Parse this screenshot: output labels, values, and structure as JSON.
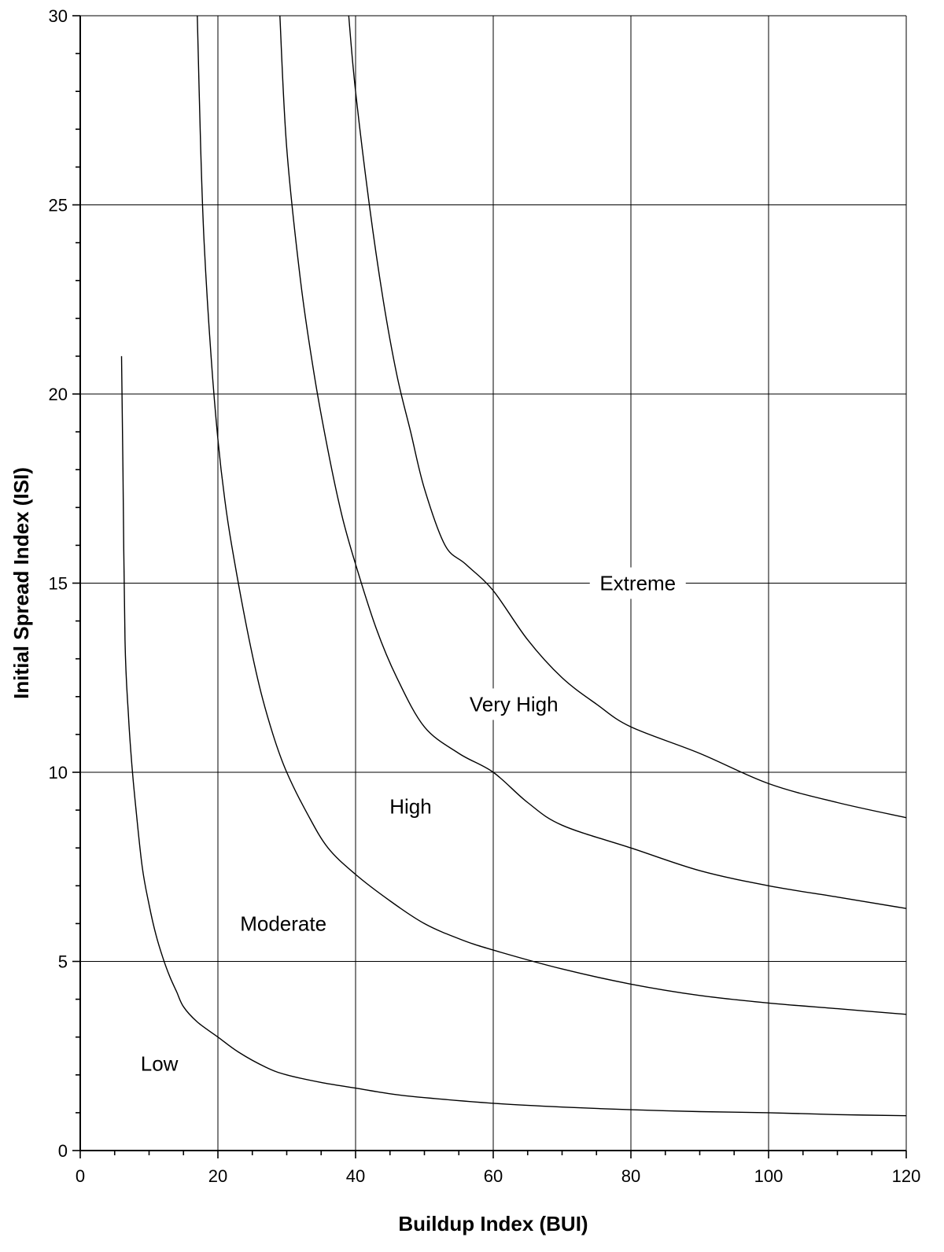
{
  "chart_data": {
    "type": "line",
    "xlabel": "Buildup Index (BUI)",
    "ylabel": "Initial Spread Index (ISI)",
    "xlim": [
      0,
      120
    ],
    "ylim": [
      0,
      30
    ],
    "x_ticks": [
      0,
      20,
      40,
      60,
      80,
      100,
      120
    ],
    "y_ticks": [
      0,
      5,
      10,
      15,
      20,
      25,
      30
    ],
    "x_minor_step": 5,
    "y_minor_step": 1,
    "grid": true,
    "legend": "none",
    "series": [
      {
        "x": [
          6,
          6.2,
          6.5,
          7,
          7.5,
          8,
          9,
          10,
          11,
          12,
          13,
          14,
          15,
          17,
          20,
          23,
          27,
          30,
          35,
          40,
          45,
          50,
          60,
          70,
          80,
          90,
          100,
          110,
          120
        ],
        "y": [
          21,
          18,
          13.5,
          11.5,
          10.2,
          9.2,
          7.5,
          6.5,
          5.7,
          5.1,
          4.6,
          4.2,
          3.8,
          3.4,
          3.0,
          2.6,
          2.2,
          2.0,
          1.8,
          1.65,
          1.5,
          1.4,
          1.25,
          1.15,
          1.08,
          1.03,
          1.0,
          0.95,
          0.92
        ]
      },
      {
        "x": [
          17,
          17.5,
          18,
          19,
          20,
          21,
          22,
          24,
          26,
          28,
          30,
          33,
          36,
          40,
          45,
          50,
          55,
          60,
          70,
          80,
          90,
          100,
          110,
          120
        ],
        "y": [
          30,
          26.5,
          24,
          21,
          18.8,
          17.2,
          16,
          14,
          12.3,
          11.0,
          10.0,
          8.9,
          8.0,
          7.3,
          6.6,
          6.0,
          5.6,
          5.3,
          4.8,
          4.4,
          4.1,
          3.9,
          3.75,
          3.6
        ],
        "labels_note": ""
      },
      {
        "x": [
          29,
          30,
          32,
          34,
          36,
          38,
          40,
          43,
          46,
          50,
          55,
          60,
          65,
          70,
          80,
          90,
          100,
          110,
          120
        ],
        "y": [
          30,
          26.5,
          23.0,
          20.5,
          18.5,
          16.8,
          15.5,
          13.8,
          12.5,
          11.2,
          10.5,
          10.0,
          9.2,
          8.6,
          8.0,
          7.4,
          7.0,
          6.7,
          6.4
        ]
      },
      {
        "x": [
          39,
          40,
          42,
          44,
          46,
          48,
          50,
          53,
          56,
          60,
          65,
          70,
          75,
          80,
          90,
          100,
          110,
          120
        ],
        "y": [
          30,
          28.0,
          25.0,
          22.5,
          20.5,
          19.0,
          17.5,
          16.0,
          15.5,
          14.8,
          13.5,
          12.5,
          11.8,
          11.2,
          10.5,
          9.7,
          9.2,
          8.8
        ]
      }
    ],
    "annotations": [
      {
        "text": "Low",
        "x": 11.5,
        "y": 2.3
      },
      {
        "text": "Moderate",
        "x": 29.5,
        "y": 6.0
      },
      {
        "text": "High",
        "x": 48.0,
        "y": 9.1
      },
      {
        "text": "Very High",
        "x": 63.0,
        "y": 11.8
      },
      {
        "text": "Extreme",
        "x": 81.0,
        "y": 15.0
      }
    ]
  }
}
